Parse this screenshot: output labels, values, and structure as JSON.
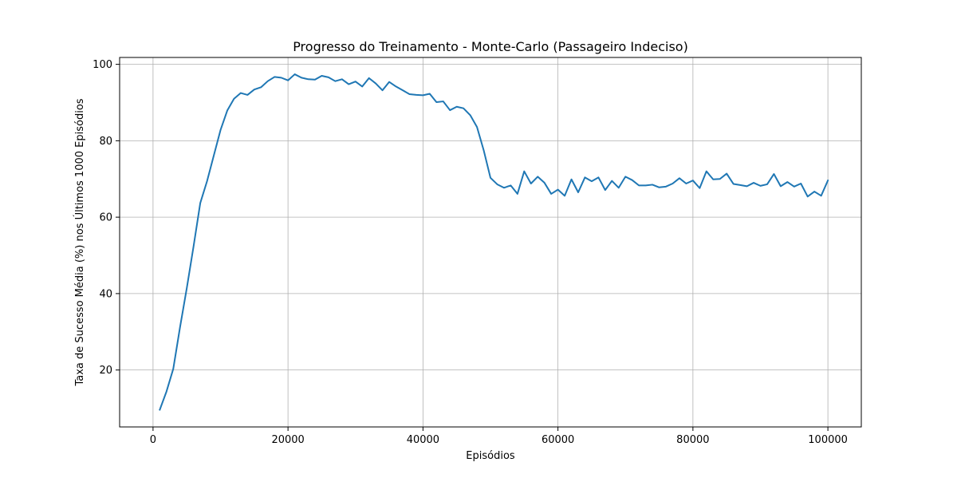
{
  "chart_data": {
    "type": "line",
    "title": "Progresso do Treinamento - Monte-Carlo (Passageiro Indeciso)",
    "xlabel": "Episódios",
    "ylabel": "Taxa de Sucesso Média (%) nos Últimos 1000 Episódios",
    "xlim": [
      -4950,
      104950
    ],
    "ylim": [
      5.1,
      101.8
    ],
    "xticks": [
      0,
      20000,
      40000,
      60000,
      80000,
      100000
    ],
    "xtick_labels": [
      "0",
      "20000",
      "40000",
      "60000",
      "80000",
      "100000"
    ],
    "yticks": [
      20,
      40,
      60,
      80,
      100
    ],
    "ytick_labels": [
      "20",
      "40",
      "60",
      "80",
      "100"
    ],
    "grid": true,
    "line_color": "#1f77b4",
    "series": [
      {
        "x": [
          1000,
          2000,
          3000,
          4000,
          5000,
          6000,
          7000,
          8000,
          9000,
          10000,
          11000,
          12000,
          13000,
          14000,
          15000,
          16000,
          17000,
          18000,
          19000,
          20000,
          21000,
          22000,
          23000,
          24000,
          25000,
          26000,
          27000,
          28000,
          29000,
          30000,
          31000,
          32000,
          33000,
          34000,
          35000,
          36000,
          37000,
          38000,
          39000,
          40000,
          41000,
          42000,
          43000,
          44000,
          45000,
          46000,
          47000,
          48000,
          49000,
          50000,
          51000,
          52000,
          53000,
          54000,
          55000,
          56000,
          57000,
          58000,
          59000,
          60000,
          61000,
          62000,
          63000,
          64000,
          65000,
          66000,
          67000,
          68000,
          69000,
          70000,
          71000,
          72000,
          73000,
          74000,
          75000,
          76000,
          77000,
          78000,
          79000,
          80000,
          81000,
          82000,
          83000,
          84000,
          85000,
          86000,
          87000,
          88000,
          89000,
          90000,
          91000,
          92000,
          93000,
          94000,
          95000,
          96000,
          97000,
          98000,
          99000,
          100000
        ],
        "values": [
          9.6,
          14.4,
          20.3,
          31.2,
          41.4,
          52.3,
          63.7,
          69.4,
          76.1,
          82.8,
          87.9,
          91.0,
          92.5,
          92.0,
          93.4,
          94.0,
          95.6,
          96.7,
          96.5,
          95.8,
          97.4,
          96.5,
          96.1,
          96.0,
          97.0,
          96.6,
          95.6,
          96.1,
          94.8,
          95.5,
          94.2,
          96.4,
          95.0,
          93.2,
          95.4,
          94.2,
          93.2,
          92.2,
          92.0,
          91.9,
          92.3,
          90.1,
          90.3,
          88.0,
          88.9,
          88.5,
          86.7,
          83.6,
          77.5,
          70.3,
          68.6,
          67.7,
          68.3,
          66.1,
          72.0,
          68.8,
          70.6,
          69.0,
          66.1,
          67.2,
          65.6,
          69.9,
          66.5,
          70.4,
          69.4,
          70.4,
          67.1,
          69.5,
          67.7,
          70.6,
          69.7,
          68.3,
          68.3,
          68.5,
          67.8,
          68.0,
          68.8,
          70.2,
          68.8,
          69.6,
          67.6,
          72.0,
          69.9,
          70.0,
          71.4,
          68.7,
          68.4,
          68.1,
          69.0,
          68.2,
          68.6,
          71.3,
          68.1,
          69.2,
          68.0,
          68.8,
          65.4,
          66.7,
          65.6,
          69.6
        ]
      }
    ]
  }
}
